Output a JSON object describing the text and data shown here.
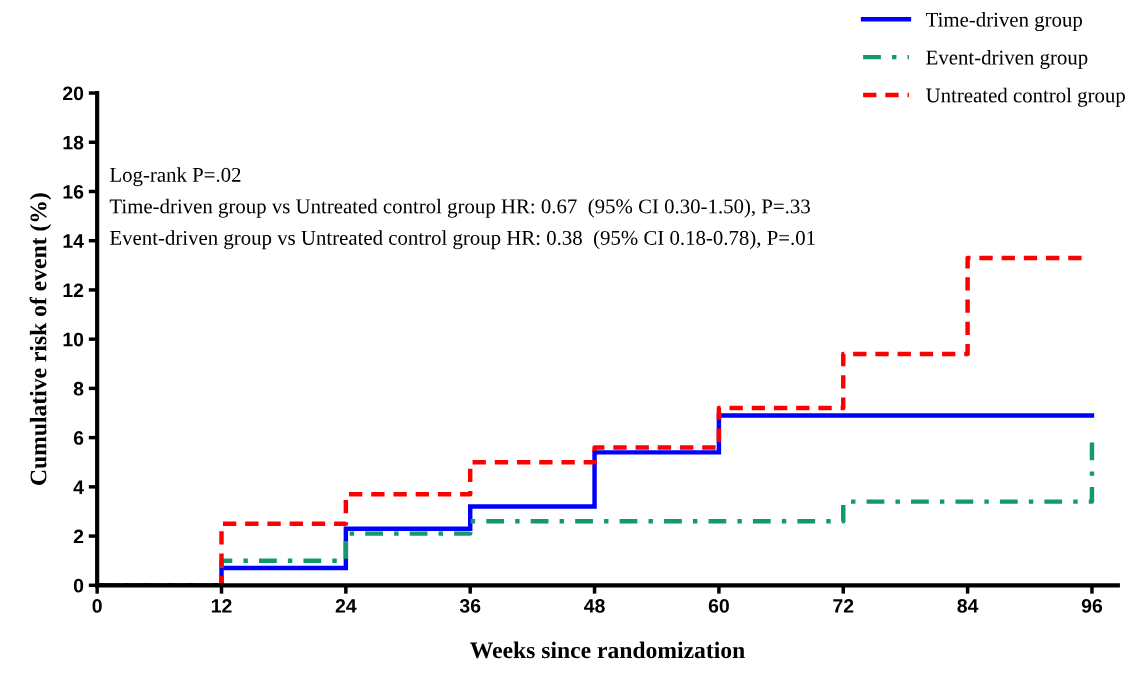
{
  "chart_data": {
    "type": "step",
    "xlabel": "Weeks since randomization",
    "ylabel": "Cumulative risk of event (%)",
    "xlim": [
      0,
      98.5
    ],
    "xticks": [
      0,
      12,
      24,
      36,
      48,
      60,
      72,
      84,
      96
    ],
    "ylim": [
      0,
      20
    ],
    "yticks": [
      0,
      2,
      4,
      6,
      8,
      10,
      12,
      14,
      16,
      18,
      20
    ],
    "grid": false,
    "legend": "top right",
    "annotations": [
      "Log-rank P=.02",
      "Time-driven group vs Untreated control group HR: 0.67  (95% CI 0.30-1.50), P=.33",
      "Event-driven group vs Untreated control group HR: 0.38  (95% CI 0.18-0.78), P=.01"
    ],
    "series": [
      {
        "name": "Time-driven group",
        "color": "#0000ff",
        "line_style": "solid",
        "x": [
          0,
          12,
          24,
          36,
          48,
          60,
          96
        ],
        "values": [
          0,
          0.7,
          2.3,
          3.2,
          5.4,
          6.9,
          6.9
        ]
      },
      {
        "name": "Event-driven group",
        "color": "#139a6a",
        "line_style": "dashdot",
        "x": [
          0,
          12,
          24,
          36,
          72,
          96
        ],
        "values": [
          0,
          1.0,
          2.1,
          2.6,
          3.4,
          5.8
        ]
      },
      {
        "name": "Untreated control group",
        "color": "#ff0000",
        "line_style": "dashed",
        "x": [
          0,
          12,
          24,
          36,
          48,
          60,
          72,
          84,
          95
        ],
        "values": [
          0,
          2.5,
          3.7,
          5.0,
          5.6,
          7.2,
          9.4,
          13.3,
          13.3
        ]
      }
    ]
  }
}
